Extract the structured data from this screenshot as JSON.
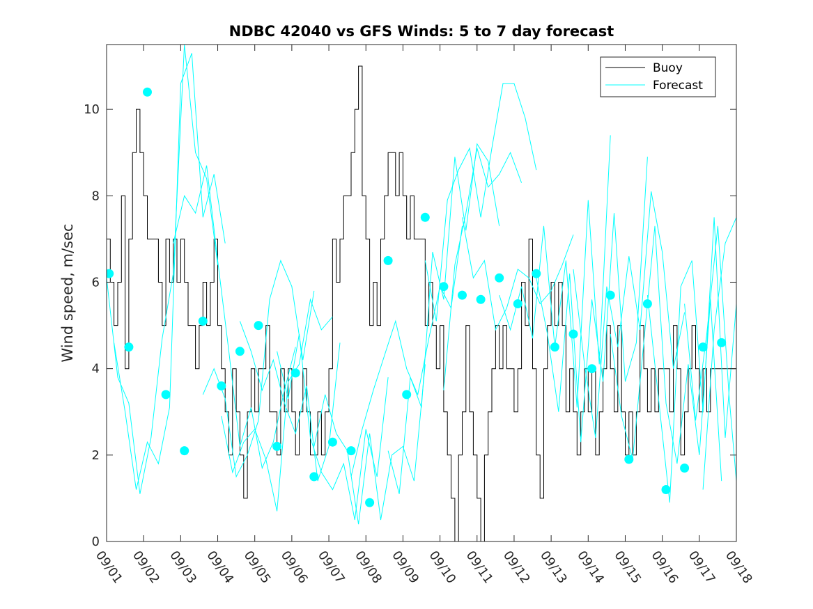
{
  "chart_data": {
    "type": "line",
    "title": "NDBC 42040 vs GFS Winds: 5 to 7 day forecast",
    "xlabel": "",
    "ylabel": "Wind speed, m/sec",
    "xlim": [
      0,
      17
    ],
    "ylim": [
      0,
      11.5
    ],
    "yticks": [
      0,
      2,
      4,
      6,
      8,
      10
    ],
    "xtick_labels": [
      "09/01",
      "09/02",
      "09/03",
      "09/04",
      "09/05",
      "09/06",
      "09/07",
      "09/08",
      "09/09",
      "09/10",
      "09/11",
      "09/12",
      "09/13",
      "09/14",
      "09/15",
      "09/16",
      "09/17",
      "09/18"
    ],
    "legend": {
      "position": "top-right",
      "entries": [
        "Buoy",
        "Forecast"
      ]
    },
    "colors": {
      "buoy": "#000000",
      "forecast": "#00ffff"
    },
    "buoy": {
      "name": "Buoy",
      "x": [
        0,
        0.1,
        0.2,
        0.3,
        0.4,
        0.5,
        0.6,
        0.7,
        0.8,
        0.9,
        1.0,
        1.1,
        1.2,
        1.3,
        1.4,
        1.5,
        1.6,
        1.7,
        1.8,
        1.9,
        2.0,
        2.1,
        2.2,
        2.3,
        2.4,
        2.5,
        2.6,
        2.7,
        2.8,
        2.9,
        3.0,
        3.1,
        3.2,
        3.3,
        3.4,
        3.5,
        3.6,
        3.7,
        3.8,
        3.9,
        4.0,
        4.1,
        4.2,
        4.3,
        4.4,
        4.5,
        4.6,
        4.7,
        4.8,
        4.9,
        5.0,
        5.1,
        5.2,
        5.3,
        5.4,
        5.5,
        5.6,
        5.7,
        5.8,
        5.9,
        6.0,
        6.1,
        6.2,
        6.3,
        6.4,
        6.5,
        6.6,
        6.7,
        6.8,
        6.9,
        7.0,
        7.1,
        7.2,
        7.3,
        7.4,
        7.5,
        7.6,
        7.7,
        7.8,
        7.9,
        8.0,
        8.1,
        8.2,
        8.3,
        8.4,
        8.5,
        8.6,
        8.7,
        8.8,
        8.9,
        9.0,
        9.1,
        9.2,
        9.3,
        9.4,
        9.5,
        9.6,
        9.7,
        9.8,
        9.9,
        10.0,
        10.1,
        10.2,
        10.3,
        10.4,
        10.5,
        10.6,
        10.7,
        10.8,
        10.9,
        11.0,
        11.1,
        11.2,
        11.3,
        11.4,
        11.5,
        11.6,
        11.7,
        11.8,
        11.9,
        12.0,
        12.1,
        12.2,
        12.3,
        12.4,
        12.5,
        12.6,
        12.7,
        12.8,
        12.9,
        13.0,
        13.1,
        13.2,
        13.3,
        13.4,
        13.5,
        13.6,
        13.7,
        13.8,
        13.9,
        14.0,
        14.1,
        14.2,
        14.3,
        14.4,
        14.5,
        14.6,
        14.7,
        14.8,
        14.9,
        15.0,
        15.1,
        15.2,
        15.3,
        15.4,
        15.5,
        15.6,
        15.7,
        15.8,
        15.9,
        16.0,
        16.1,
        16.2,
        16.3,
        16.4,
        16.5,
        16.6,
        16.7,
        16.8,
        16.9,
        17.0
      ],
      "values": [
        7,
        6,
        5,
        6,
        8,
        4,
        7,
        9,
        10,
        9,
        8,
        7,
        7,
        7,
        6,
        5,
        7,
        6,
        7,
        6,
        7,
        6,
        5,
        5,
        4,
        5,
        6,
        5,
        6,
        7,
        5,
        4,
        3,
        2,
        4,
        3,
        2,
        1,
        3,
        4,
        3,
        4,
        4,
        5,
        3,
        3,
        2,
        4,
        3,
        4,
        3,
        2,
        3,
        4,
        3,
        2,
        2,
        3,
        2,
        3,
        4,
        7,
        6,
        7,
        8,
        8,
        9,
        10,
        11,
        8,
        7,
        5,
        6,
        5,
        7,
        8,
        9,
        9,
        8,
        9,
        8,
        7,
        8,
        7,
        7,
        7,
        5,
        6,
        5,
        4,
        5,
        3,
        2,
        1,
        0,
        2,
        3,
        5,
        3,
        2,
        1,
        0,
        2,
        3,
        4,
        5,
        4,
        5,
        4,
        4,
        3,
        4,
        6,
        5,
        7,
        4,
        2,
        1,
        4,
        5,
        6,
        5,
        6,
        5,
        3,
        4,
        3,
        2,
        3,
        4,
        3,
        4,
        2,
        3,
        4,
        5,
        4,
        3,
        5,
        3,
        2,
        3,
        2,
        3,
        5,
        4,
        3,
        4,
        3,
        4,
        4,
        4,
        3,
        5,
        4,
        2,
        3,
        4,
        5,
        4,
        3,
        4,
        3,
        4,
        4,
        4,
        4,
        4,
        4,
        4,
        4
      ]
    },
    "forecast_series": [
      {
        "name": "Forecast",
        "x": [
          0.0,
          0.3,
          0.6,
          0.9,
          1.2,
          1.5,
          1.8,
          2.1,
          2.4,
          2.7,
          3.0
        ],
        "values": [
          6.1,
          3.8,
          3.2,
          1.1,
          2.4,
          4.7,
          6.2,
          11.5,
          9.0,
          8.4,
          6.4
        ]
      },
      {
        "name": "Forecast",
        "x": [
          0.2,
          0.5,
          0.8,
          1.1,
          1.4,
          1.7,
          2.0,
          2.3,
          2.6,
          2.9,
          3.2
        ],
        "values": [
          4.6,
          3.0,
          1.2,
          2.3,
          1.8,
          3.1,
          10.6,
          11.3,
          7.5,
          8.5,
          6.9
        ]
      },
      {
        "name": "Forecast",
        "x": [
          1.8,
          2.1,
          2.4,
          2.7,
          3.0,
          3.3,
          3.6,
          3.9,
          4.2,
          4.5,
          4.8,
          5.1
        ],
        "values": [
          6.9,
          8.0,
          7.6,
          8.7,
          6.5,
          4.4,
          2.2,
          3.1,
          1.7,
          2.3,
          3.5,
          4.5
        ]
      },
      {
        "name": "Forecast",
        "x": [
          2.6,
          2.9,
          3.2,
          3.5,
          3.8,
          4.1,
          4.4,
          4.7,
          5.0,
          5.3,
          5.6
        ],
        "values": [
          3.4,
          4.0,
          3.3,
          1.5,
          2.0,
          2.8,
          5.6,
          6.5,
          5.9,
          4.2,
          5.8
        ]
      },
      {
        "name": "Forecast",
        "x": [
          3.1,
          3.4,
          3.7,
          4.0,
          4.3,
          4.6,
          4.9,
          5.2,
          5.5,
          5.8,
          6.1
        ],
        "values": [
          2.9,
          1.6,
          2.3,
          2.6,
          1.9,
          0.7,
          3.7,
          4.1,
          5.6,
          4.9,
          5.2
        ]
      },
      {
        "name": "Forecast",
        "x": [
          3.6,
          3.9,
          4.2,
          4.5,
          4.8,
          5.1,
          5.4,
          5.7,
          6.0,
          6.3
        ],
        "values": [
          5.1,
          4.4,
          3.5,
          4.2,
          3.2,
          2.5,
          3.6,
          1.4,
          2.2,
          4.6
        ]
      },
      {
        "name": "Forecast",
        "x": [
          4.6,
          4.9,
          5.2,
          5.5,
          5.8,
          6.1,
          6.4,
          6.7,
          7.0,
          7.3,
          7.6
        ],
        "values": [
          4.4,
          3.3,
          4.8,
          2.4,
          1.6,
          1.2,
          1.8,
          0.5,
          2.6,
          1.5,
          3.8
        ]
      },
      {
        "name": "Forecast",
        "x": [
          5.6,
          5.9,
          6.2,
          6.5,
          6.8,
          7.1,
          7.4,
          7.7,
          8.0,
          8.3,
          8.6
        ],
        "values": [
          2.2,
          3.4,
          2.5,
          2.1,
          0.4,
          2.5,
          0.5,
          2.0,
          2.2,
          1.4,
          4.1
        ]
      },
      {
        "name": "Forecast",
        "x": [
          6.6,
          6.9,
          7.2,
          7.5,
          7.8,
          8.1,
          8.4,
          8.7,
          9.0,
          9.3,
          9.6
        ],
        "values": [
          1.5,
          2.6,
          3.5,
          4.3,
          5.1,
          4.0,
          3.4,
          4.7,
          5.9,
          5.4,
          7.3
        ]
      },
      {
        "name": "Forecast",
        "x": [
          7.6,
          7.9,
          8.2,
          8.5,
          8.8,
          9.1,
          9.4,
          9.7,
          10.0,
          10.3,
          10.6
        ],
        "values": [
          2.1,
          1.1,
          3.8,
          3.1,
          6.7,
          5.6,
          8.9,
          7.2,
          9.2,
          8.8,
          7.3
        ]
      },
      {
        "name": "Forecast",
        "x": [
          8.6,
          8.9,
          9.2,
          9.5,
          9.8,
          10.1,
          10.4,
          10.7,
          11.0,
          11.3,
          11.6
        ],
        "values": [
          6.5,
          5.1,
          7.9,
          8.6,
          9.1,
          7.5,
          9.1,
          10.6,
          10.6,
          9.8,
          8.6
        ]
      },
      {
        "name": "Forecast",
        "x": [
          9.1,
          9.4,
          9.7,
          10.0,
          10.3,
          10.6,
          10.9,
          11.2
        ],
        "values": [
          3.5,
          6.4,
          7.6,
          9.1,
          8.2,
          8.5,
          9.0,
          8.3
        ]
      },
      {
        "name": "Forecast",
        "x": [
          9.6,
          9.9,
          10.2,
          10.5,
          10.8,
          11.1,
          11.4,
          11.7,
          12.0,
          12.3,
          12.6
        ],
        "values": [
          7.5,
          6.1,
          6.5,
          4.9,
          5.4,
          6.3,
          6.1,
          5.5,
          5.8,
          6.4,
          7.1
        ]
      },
      {
        "name": "Forecast",
        "x": [
          10.6,
          10.9,
          11.2,
          11.5,
          11.8,
          12.1,
          12.4,
          12.7,
          13.0,
          13.3,
          13.6
        ],
        "values": [
          5.7,
          4.9,
          5.9,
          4.7,
          7.3,
          4.5,
          6.5,
          3.1,
          7.9,
          4.1,
          9.4
        ]
      },
      {
        "name": "Forecast",
        "x": [
          11.6,
          11.9,
          12.2,
          12.5,
          12.8,
          13.1,
          13.4,
          13.7,
          14.0,
          14.3,
          14.6
        ],
        "values": [
          6.1,
          4.8,
          3.0,
          6.2,
          2.3,
          5.6,
          3.7,
          7.6,
          3.7,
          4.6,
          8.9
        ]
      },
      {
        "name": "Forecast",
        "x": [
          12.6,
          12.9,
          13.2,
          13.5,
          13.8,
          14.1,
          14.4,
          14.7,
          15.0,
          15.3,
          15.6
        ],
        "values": [
          6.3,
          4.1,
          2.4,
          5.9,
          4.5,
          6.6,
          4.9,
          8.1,
          6.7,
          4.0,
          5.3
        ]
      },
      {
        "name": "Forecast",
        "x": [
          13.6,
          13.9,
          14.2,
          14.5,
          14.8,
          15.1,
          15.4,
          15.7,
          16.0,
          16.3,
          16.6
        ],
        "values": [
          4.8,
          2.9,
          1.9,
          4.6,
          7.3,
          3.2,
          1.8,
          4.1,
          2.0,
          5.6,
          1.4
        ]
      },
      {
        "name": "Forecast",
        "x": [
          14.6,
          14.9,
          15.2,
          15.5,
          15.8,
          16.1,
          16.4,
          16.7,
          17.0
        ],
        "values": [
          5.7,
          3.3,
          0.9,
          5.9,
          6.5,
          3.0,
          7.5,
          2.4,
          5.5
        ]
      },
      {
        "name": "Forecast",
        "x": [
          15.6,
          15.9,
          16.2,
          16.5,
          16.8,
          17.0
        ],
        "values": [
          5.5,
          2.8,
          4.8,
          7.3,
          3.4,
          1.4
        ]
      },
      {
        "name": "Forecast",
        "x": [
          16.1,
          16.4,
          16.7,
          17.0
        ],
        "values": [
          1.2,
          4.9,
          6.9,
          7.5
        ]
      }
    ],
    "forecast_points": {
      "name": "Forecast",
      "x": [
        0.07,
        0.6,
        1.1,
        1.6,
        2.1,
        2.6,
        3.1,
        3.6,
        4.1,
        4.6,
        5.1,
        5.6,
        6.1,
        6.6,
        7.1,
        7.6,
        8.1,
        8.6,
        9.1,
        9.6,
        10.1,
        10.6,
        11.1,
        11.6,
        12.1,
        12.6,
        13.1,
        13.6,
        14.1,
        14.6,
        15.1,
        15.6,
        16.1,
        16.6
      ],
      "values": [
        6.2,
        4.5,
        10.4,
        3.4,
        2.1,
        5.1,
        3.6,
        4.4,
        5.0,
        2.2,
        3.9,
        1.5,
        2.3,
        2.1,
        0.9,
        6.5,
        3.4,
        7.5,
        5.9,
        5.7,
        5.6,
        6.1,
        5.5,
        6.2,
        4.5,
        4.8,
        4.0,
        5.7,
        1.9,
        5.5,
        1.2,
        1.7,
        4.5,
        4.6
      ]
    }
  }
}
